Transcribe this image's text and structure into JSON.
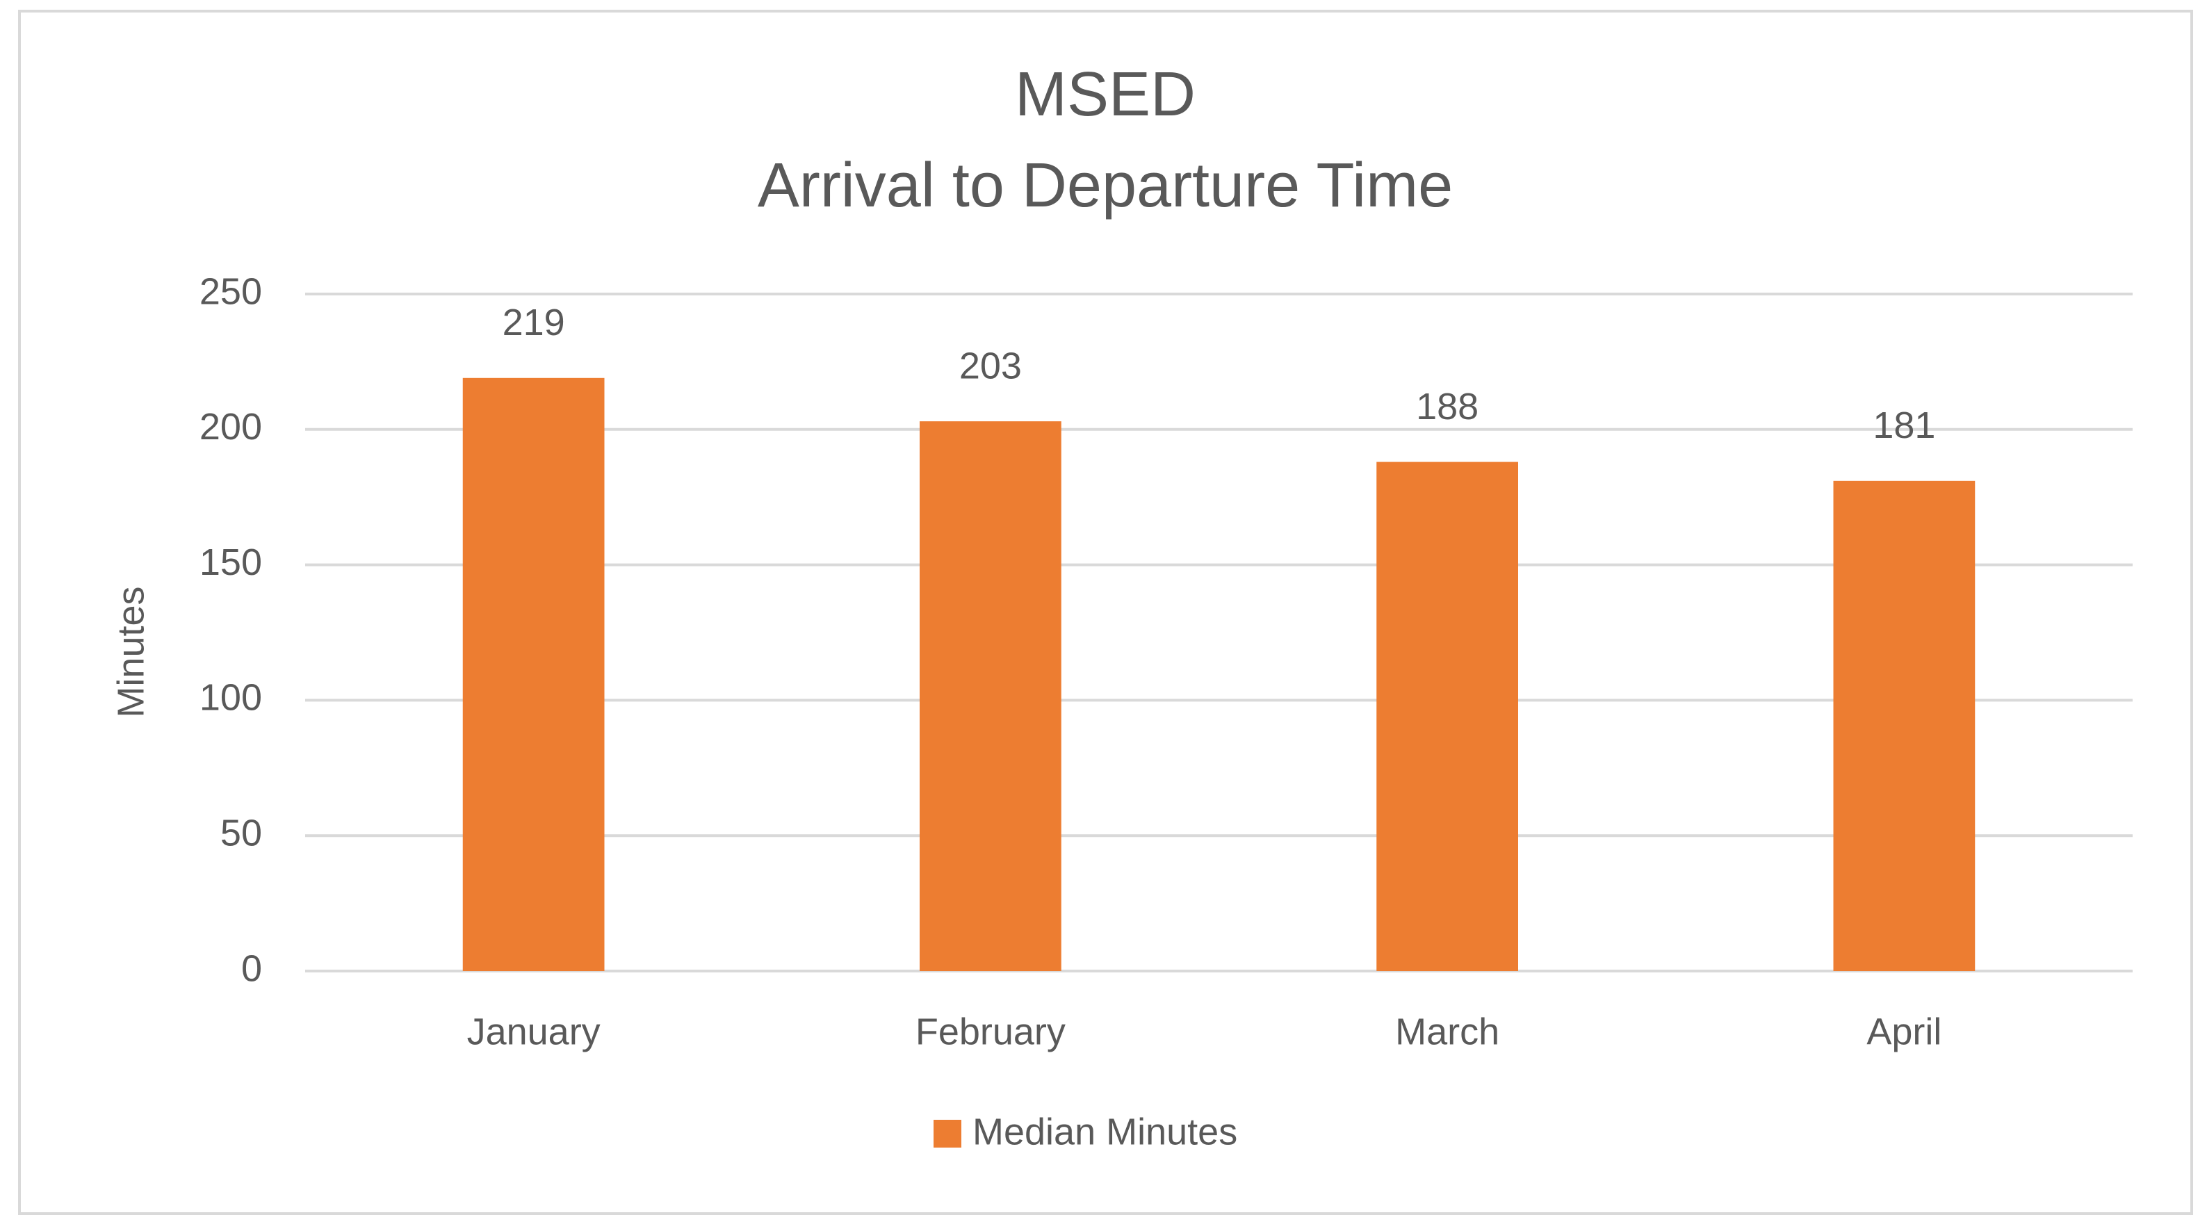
{
  "chart_data": {
    "type": "bar",
    "title": "MSED",
    "subtitle": "Arrival to Departure Time",
    "y_label": "Minutes",
    "categories": [
      "January",
      "February",
      "March",
      "April"
    ],
    "series": [
      {
        "name": "Median Minutes",
        "color": "#ed7d31",
        "values": [
          219,
          203,
          188,
          181
        ]
      }
    ],
    "ylim": [
      0,
      250
    ],
    "yticks": [
      0,
      50,
      100,
      150,
      200,
      250
    ],
    "grid": true,
    "legend": "bottom"
  }
}
